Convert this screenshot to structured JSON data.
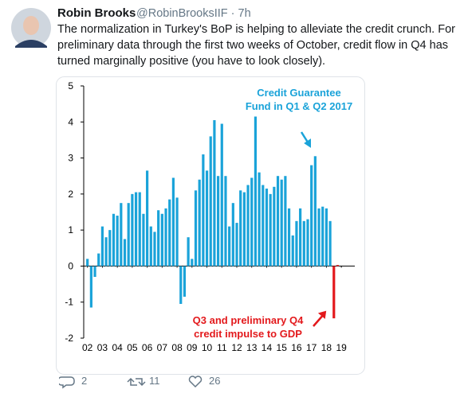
{
  "tweet": {
    "name": "Robin Brooks",
    "handle": "@RobinBrooksIIF · 7h",
    "text_lines": [
      "The normalization in Turkey's BoP is helping to alleviate the credit crunch. For",
      "preliminary data through the first two weeks of October, credit flow in Q4 has",
      "turned marginally positive (you have to look closely)."
    ],
    "replies": "2",
    "retweets": "11",
    "likes": "26"
  },
  "chart_data": {
    "type": "bar",
    "x": [
      2002,
      2002.25,
      2002.5,
      2002.75,
      2003,
      2003.25,
      2003.5,
      2003.75,
      2004,
      2004.25,
      2004.5,
      2004.75,
      2005,
      2005.25,
      2005.5,
      2005.75,
      2006,
      2006.25,
      2006.5,
      2006.75,
      2007,
      2007.25,
      2007.5,
      2007.75,
      2008,
      2008.25,
      2008.5,
      2008.75,
      2009,
      2009.25,
      2009.5,
      2009.75,
      2010,
      2010.25,
      2010.5,
      2010.75,
      2011,
      2011.25,
      2011.5,
      2011.75,
      2012,
      2012.25,
      2012.5,
      2012.75,
      2013,
      2013.25,
      2013.5,
      2013.75,
      2014,
      2014.25,
      2014.5,
      2014.75,
      2015,
      2015.25,
      2015.5,
      2015.75,
      2016,
      2016.25,
      2016.5,
      2016.75,
      2017,
      2017.25,
      2017.5,
      2017.75,
      2018,
      2018.25,
      2018.5,
      2018.75
    ],
    "values": [
      0.2,
      -1.15,
      -0.3,
      0.35,
      1.1,
      0.8,
      1.0,
      1.45,
      1.4,
      1.75,
      0.75,
      1.75,
      2.0,
      2.05,
      2.05,
      1.45,
      2.65,
      1.1,
      0.95,
      1.55,
      1.45,
      1.6,
      1.85,
      2.45,
      1.9,
      -1.05,
      -0.85,
      0.8,
      0.2,
      2.1,
      2.4,
      3.1,
      2.65,
      3.6,
      4.05,
      2.5,
      3.95,
      2.5,
      1.1,
      1.75,
      1.2,
      2.1,
      2.05,
      2.25,
      2.45,
      4.15,
      2.6,
      2.25,
      2.15,
      2.0,
      2.2,
      2.5,
      2.4,
      2.5,
      1.6,
      0.85,
      1.25,
      1.6,
      1.25,
      1.3,
      2.8,
      3.05,
      1.6,
      1.65,
      1.6,
      1.25,
      -1.45,
      0.03
    ],
    "colors": [
      "#1aa3d9",
      "#1aa3d9",
      "#1aa3d9",
      "#1aa3d9",
      "#1aa3d9",
      "#1aa3d9",
      "#1aa3d9",
      "#1aa3d9",
      "#1aa3d9",
      "#1aa3d9",
      "#1aa3d9",
      "#1aa3d9",
      "#1aa3d9",
      "#1aa3d9",
      "#1aa3d9",
      "#1aa3d9",
      "#1aa3d9",
      "#1aa3d9",
      "#1aa3d9",
      "#1aa3d9",
      "#1aa3d9",
      "#1aa3d9",
      "#1aa3d9",
      "#1aa3d9",
      "#1aa3d9",
      "#1aa3d9",
      "#1aa3d9",
      "#1aa3d9",
      "#1aa3d9",
      "#1aa3d9",
      "#1aa3d9",
      "#1aa3d9",
      "#1aa3d9",
      "#1aa3d9",
      "#1aa3d9",
      "#1aa3d9",
      "#1aa3d9",
      "#1aa3d9",
      "#1aa3d9",
      "#1aa3d9",
      "#1aa3d9",
      "#1aa3d9",
      "#1aa3d9",
      "#1aa3d9",
      "#1aa3d9",
      "#1aa3d9",
      "#1aa3d9",
      "#1aa3d9",
      "#1aa3d9",
      "#1aa3d9",
      "#1aa3d9",
      "#1aa3d9",
      "#1aa3d9",
      "#1aa3d9",
      "#1aa3d9",
      "#1aa3d9",
      "#1aa3d9",
      "#1aa3d9",
      "#1aa3d9",
      "#1aa3d9",
      "#1aa3d9",
      "#1aa3d9",
      "#1aa3d9",
      "#1aa3d9",
      "#1aa3d9",
      "#1aa3d9",
      "#e3191c",
      "#e3191c"
    ],
    "xlim": [
      2001.75,
      2019.9
    ],
    "xticks": [
      {
        "value": 2002,
        "label": "02"
      },
      {
        "value": 2003,
        "label": "03"
      },
      {
        "value": 2004,
        "label": "04"
      },
      {
        "value": 2005,
        "label": "05"
      },
      {
        "value": 2006,
        "label": "06"
      },
      {
        "value": 2007,
        "label": "07"
      },
      {
        "value": 2008,
        "label": "08"
      },
      {
        "value": 2009,
        "label": "09"
      },
      {
        "value": 2010,
        "label": "10"
      },
      {
        "value": 2011,
        "label": "11"
      },
      {
        "value": 2012,
        "label": "12"
      },
      {
        "value": 2013,
        "label": "13"
      },
      {
        "value": 2014,
        "label": "14"
      },
      {
        "value": 2015,
        "label": "15"
      },
      {
        "value": 2016,
        "label": "16"
      },
      {
        "value": 2017,
        "label": "17"
      },
      {
        "value": 2018,
        "label": "18"
      },
      {
        "value": 2019,
        "label": "19"
      }
    ],
    "ylim": [
      -2,
      5
    ],
    "yticks": [
      -2,
      -1,
      0,
      1,
      2,
      3,
      4,
      5
    ],
    "grid": false,
    "annotations": [
      {
        "lines": [
          "Credit Guarantee",
          "Fund in Q1 & Q2 2017"
        ],
        "color": "#1aa3d9"
      },
      {
        "lines": [
          "Q3 and preliminary Q4",
          "credit impulse to GDP"
        ],
        "color": "#e3191c"
      }
    ]
  }
}
